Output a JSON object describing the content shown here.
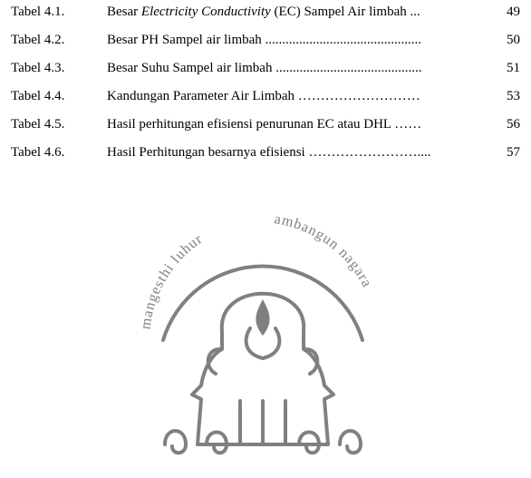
{
  "toc": {
    "font_size": 15,
    "text_color": "#000000",
    "dot_char": ".",
    "rows": [
      {
        "label": "Tabel 4.1.",
        "title_prefix": "Besar ",
        "title_italic": "Electricity Conductivity",
        "title_suffix": " (EC) Sampel Air limbah ...",
        "page": "49"
      },
      {
        "label": "Tabel 4.2.",
        "title_prefix": "Besar PH Sampel air limbah ..............................................",
        "title_italic": "",
        "title_suffix": "",
        "page": "50"
      },
      {
        "label": "Tabel 4.3.",
        "title_prefix": "Besar Suhu Sampel air limbah ...........................................",
        "title_italic": "",
        "title_suffix": "",
        "page": "51"
      },
      {
        "label": "Tabel 4.4.",
        "title_prefix": "Kandungan Parameter Air Limbah ………………………",
        "title_italic": "",
        "title_suffix": "",
        "page": "53"
      },
      {
        "label": "Tabel 4.5.",
        "title_prefix": "Hasil perhitungan efisiensi penurunan EC atau DHL ……",
        "title_italic": "",
        "title_suffix": "",
        "page": "56"
      },
      {
        "label": "Tabel 4.6.",
        "title_prefix": "Hasil Perhitungan besarnya efisiensi ……………………....",
        "title_italic": "",
        "title_suffix": "",
        "page": "57"
      }
    ]
  },
  "logo": {
    "stroke_color": "#808080",
    "text_color": "#808080",
    "background": "#ffffff",
    "circle_text_left": "mangesthi luhur",
    "circle_text_right": "ambangun nagara"
  }
}
